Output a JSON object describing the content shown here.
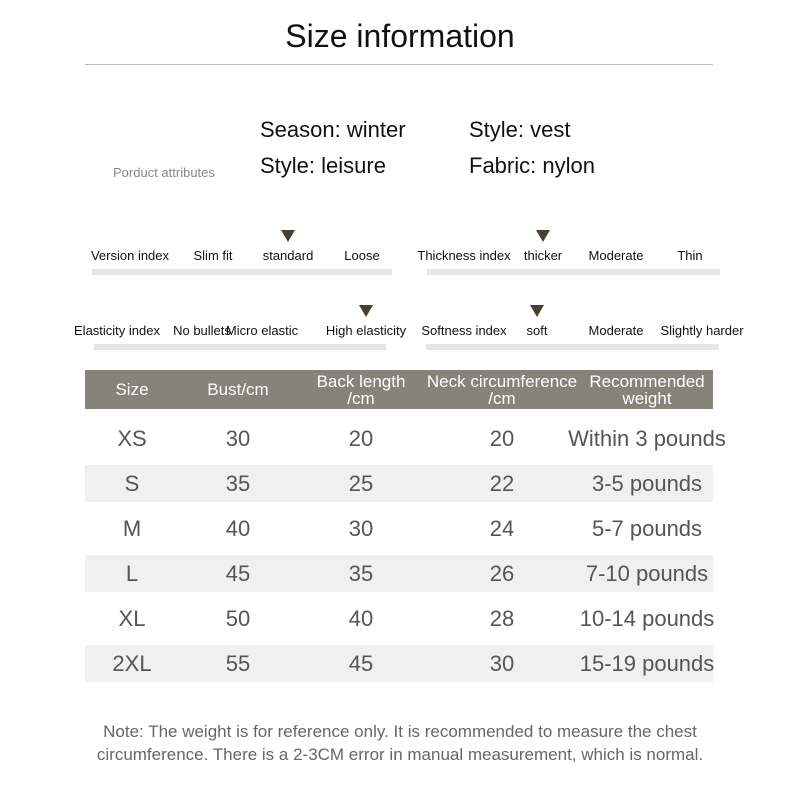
{
  "title": "Size information",
  "attributes": {
    "label": "Porduct attributes",
    "items": [
      "Season: winter",
      "Style: vest",
      "Style: leisure",
      "Fabric: nylon"
    ]
  },
  "indices": [
    {
      "name": "Version index",
      "options": [
        "Slim fit",
        "standard",
        "Loose"
      ],
      "selected": "standard"
    },
    {
      "name": "Thickness index",
      "options": [
        "thicker",
        "Moderate",
        "Thin"
      ],
      "selected": "thicker"
    },
    {
      "name": "Elasticity index",
      "options": [
        "No bullets",
        "Micro elastic",
        "High elasticity"
      ],
      "selected": "High elasticity"
    },
    {
      "name": "Softness index",
      "options": [
        "soft",
        "Moderate",
        "Slightly harder"
      ],
      "selected": "soft"
    }
  ],
  "table": {
    "headers": [
      [
        "Size",
        ""
      ],
      [
        "Bust/cm",
        ""
      ],
      [
        "Back length",
        "/cm"
      ],
      [
        "Neck circumference",
        "/cm"
      ],
      [
        "Recommended",
        "weight"
      ]
    ],
    "rows": [
      [
        "XS",
        "30",
        "20",
        "20",
        "Within 3 pounds"
      ],
      [
        "S",
        "35",
        "25",
        "22",
        "3-5 pounds"
      ],
      [
        "M",
        "40",
        "30",
        "24",
        "5-7 pounds"
      ],
      [
        "L",
        "45",
        "35",
        "26",
        "7-10 pounds"
      ],
      [
        "XL",
        "50",
        "40",
        "28",
        "10-14 pounds"
      ],
      [
        "2XL",
        "55",
        "45",
        "30",
        "15-19 pounds"
      ]
    ]
  },
  "note": [
    "Note: The weight is for reference only. It is recommended to measure the chest",
    "circumference. There is a 2-3CM error in manual measurement, which is normal."
  ],
  "colors": {
    "header_bg": "#86847a",
    "arrow": "#4a3f30",
    "alt_row": "#f0f0f0"
  }
}
